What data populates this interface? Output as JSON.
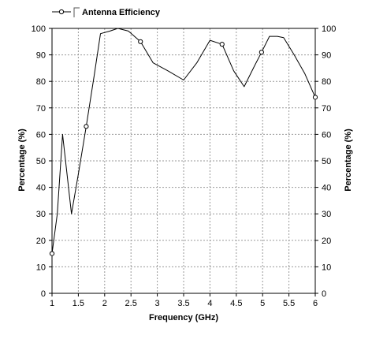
{
  "chart_data": {
    "type": "line",
    "title": "",
    "xlabel": "Frequency (GHz)",
    "ylabel": "Percentage (%)",
    "y2label": "Percentage (%)",
    "xlim": [
      1,
      6
    ],
    "ylim": [
      0,
      100
    ],
    "x_ticks": [
      "1",
      "1.5",
      "2",
      "2.5",
      "3",
      "3.5",
      "4",
      "4.5",
      "5",
      "5.5",
      "6"
    ],
    "y_ticks": [
      "0",
      "10",
      "20",
      "30",
      "40",
      "50",
      "60",
      "70",
      "80",
      "90",
      "100"
    ],
    "grid": true,
    "legend_position": "top-left",
    "series": [
      {
        "name": "Antenna Efficiency",
        "color": "#000000",
        "x": [
          1.0,
          1.1,
          1.2,
          1.37,
          1.5,
          1.65,
          1.8,
          1.92,
          2.1,
          2.25,
          2.45,
          2.68,
          2.92,
          3.2,
          3.5,
          3.75,
          4.0,
          4.23,
          4.45,
          4.65,
          4.85,
          4.98,
          5.13,
          5.28,
          5.4,
          5.6,
          5.8,
          6.0
        ],
        "y": [
          15,
          30,
          60,
          30,
          45,
          63,
          82,
          98,
          99,
          100,
          99,
          95,
          87,
          84,
          80.5,
          87,
          95.5,
          94,
          84,
          78,
          86,
          91,
          97,
          97,
          96.5,
          90,
          83,
          74
        ],
        "markers_x": [
          1.0,
          1.65,
          2.68,
          4.23,
          4.98,
          6.0
        ],
        "markers_y": [
          15,
          63,
          95,
          94,
          91,
          74
        ]
      }
    ]
  }
}
